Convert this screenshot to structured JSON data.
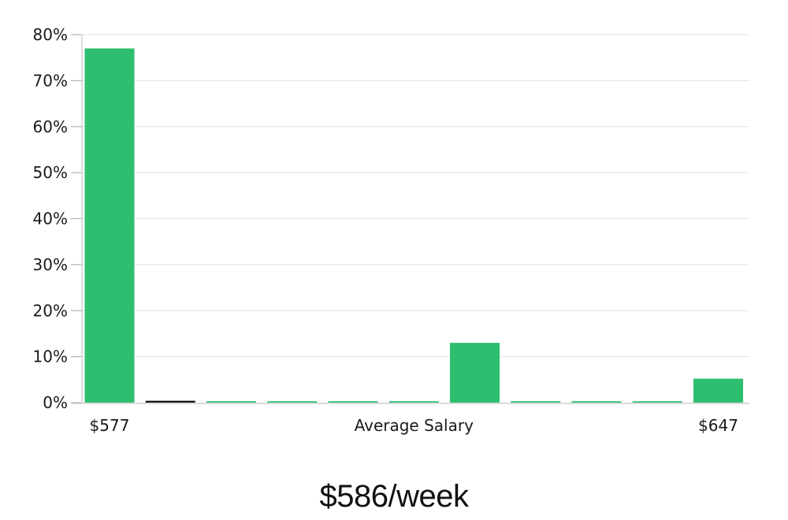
{
  "chart_data": {
    "type": "bar",
    "title": "$586/week",
    "description": "Weekly salary distribution histogram",
    "n_bars": 11,
    "values": [
      77,
      0.4,
      0.3,
      0.3,
      0.3,
      0.3,
      13,
      0.3,
      0.3,
      0.3,
      5.2
    ],
    "bar_colors": [
      "#2dbe70",
      "#14161f",
      "#2dbe70",
      "#2dbe70",
      "#2dbe70",
      "#2dbe70",
      "#2dbe70",
      "#2dbe70",
      "#2dbe70",
      "#2dbe70",
      "#2dbe70"
    ],
    "x_tick_labels": [
      {
        "bar_index": 0,
        "label": "$577"
      },
      {
        "bar_index": 5,
        "label": "Average Salary"
      },
      {
        "bar_index": 10,
        "label": "$647"
      }
    ],
    "y_ticks": [
      "0%",
      "10%",
      "20%",
      "30%",
      "40%",
      "50%",
      "60%",
      "70%",
      "80%"
    ],
    "ylim": [
      0,
      80
    ],
    "grid": "horizontal",
    "legend": "none",
    "colors": {
      "bar_green": "#2dbe70",
      "bar_dark": "#14161f",
      "gridline": "#e7e7e7",
      "axis_line": "#cdcdcd",
      "tick_mark": "#b3b3b3",
      "tick_text": "#1a1a1a",
      "title_text": "#111111",
      "background": "#ffffff"
    }
  }
}
